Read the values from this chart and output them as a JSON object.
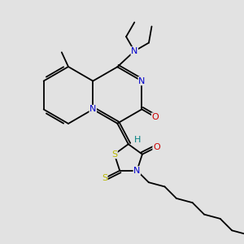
{
  "background_color": "#e2e2e2",
  "bond_color": "#000000",
  "atom_colors": {
    "N": "#0000cc",
    "O": "#cc0000",
    "S": "#b8b800",
    "H": "#008080",
    "C": "#000000"
  },
  "font_size_atom": 8,
  "figsize": [
    3.0,
    3.0
  ],
  "dpi": 100
}
